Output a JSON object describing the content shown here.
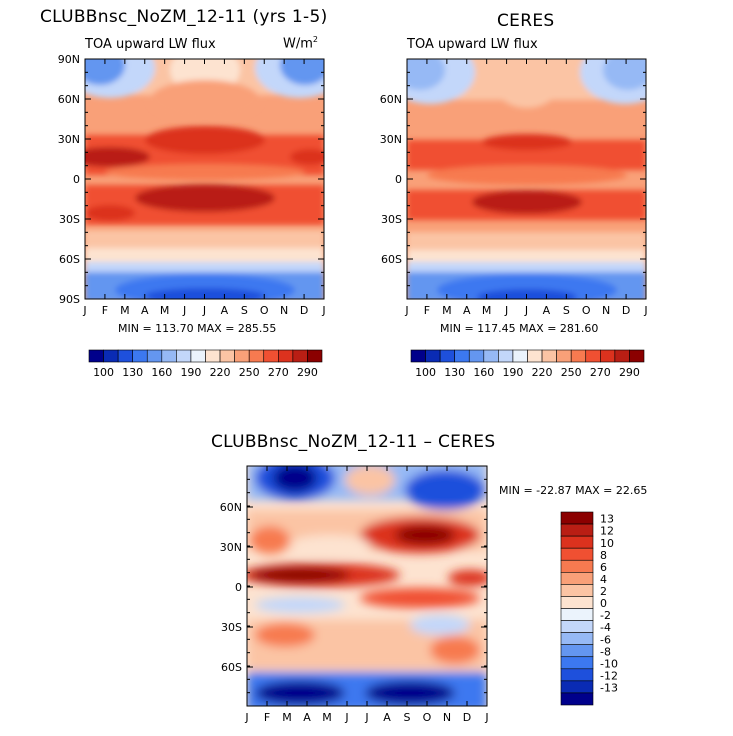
{
  "panels": {
    "left": {
      "title": "CLUBBnsc_NoZM_12-11 (yrs 1-5)",
      "subtitle": "TOA upward LW flux",
      "units": "W/m",
      "units_sup": "2",
      "stats": "MIN = 113.70 MAX = 285.55"
    },
    "right": {
      "title": "CERES",
      "subtitle": "TOA upward LW flux",
      "stats": "MIN = 117.45 MAX = 281.60"
    },
    "diff": {
      "title": "CLUBBnsc_NoZM_12-11 – CERES",
      "stats": "MIN = -22.87 MAX =  22.65"
    }
  },
  "chart_data": [
    {
      "type": "heatmap",
      "title": "CLUBBnsc_NoZM_12-11 (yrs 1-5)",
      "subtitle": "TOA upward LW flux",
      "x_ticks": [
        "J",
        "F",
        "M",
        "A",
        "M",
        "J",
        "J",
        "A",
        "S",
        "O",
        "N",
        "D",
        "J"
      ],
      "y_ticks": [
        "90N",
        "60N",
        "30N",
        "0",
        "30S",
        "60S",
        "90S"
      ],
      "min": 113.7,
      "max": 285.55,
      "colorbar_labels": [
        "100",
        "130",
        "160",
        "190",
        "220",
        "250",
        "270",
        "290"
      ]
    },
    {
      "type": "heatmap",
      "title": "CERES",
      "subtitle": "TOA upward LW flux",
      "x_ticks": [
        "J",
        "F",
        "M",
        "A",
        "M",
        "J",
        "J",
        "A",
        "S",
        "O",
        "N",
        "D",
        "J"
      ],
      "y_ticks": [
        "60N",
        "30N",
        "0",
        "30S",
        "60S"
      ],
      "min": 117.45,
      "max": 281.6,
      "colorbar_labels": [
        "100",
        "130",
        "160",
        "190",
        "220",
        "250",
        "270",
        "290"
      ]
    },
    {
      "type": "heatmap",
      "title": "CLUBBnsc_NoZM_12-11 – CERES",
      "x_ticks": [
        "J",
        "F",
        "M",
        "A",
        "M",
        "J",
        "J",
        "A",
        "S",
        "O",
        "N",
        "D",
        "J"
      ],
      "y_ticks": [
        "60N",
        "30N",
        "0",
        "30S",
        "60S"
      ],
      "min": -22.87,
      "max": 22.65,
      "colorbar_labels": [
        "13",
        "12",
        "10",
        "8",
        "6",
        "4",
        "2",
        "0",
        "-2",
        "-4",
        "-6",
        "-8",
        "-10",
        "-12",
        "-13"
      ]
    }
  ],
  "colors": {
    "scale": [
      "#00008b",
      "#0a2bb4",
      "#1e50dc",
      "#3c78f0",
      "#6496f0",
      "#96b9f5",
      "#c3d7fa",
      "#ebf3fc",
      "#fde3d0",
      "#fbc4a4",
      "#f9a078",
      "#f77a50",
      "#f05032",
      "#dc321e",
      "#b91e14",
      "#8b0000"
    ]
  }
}
